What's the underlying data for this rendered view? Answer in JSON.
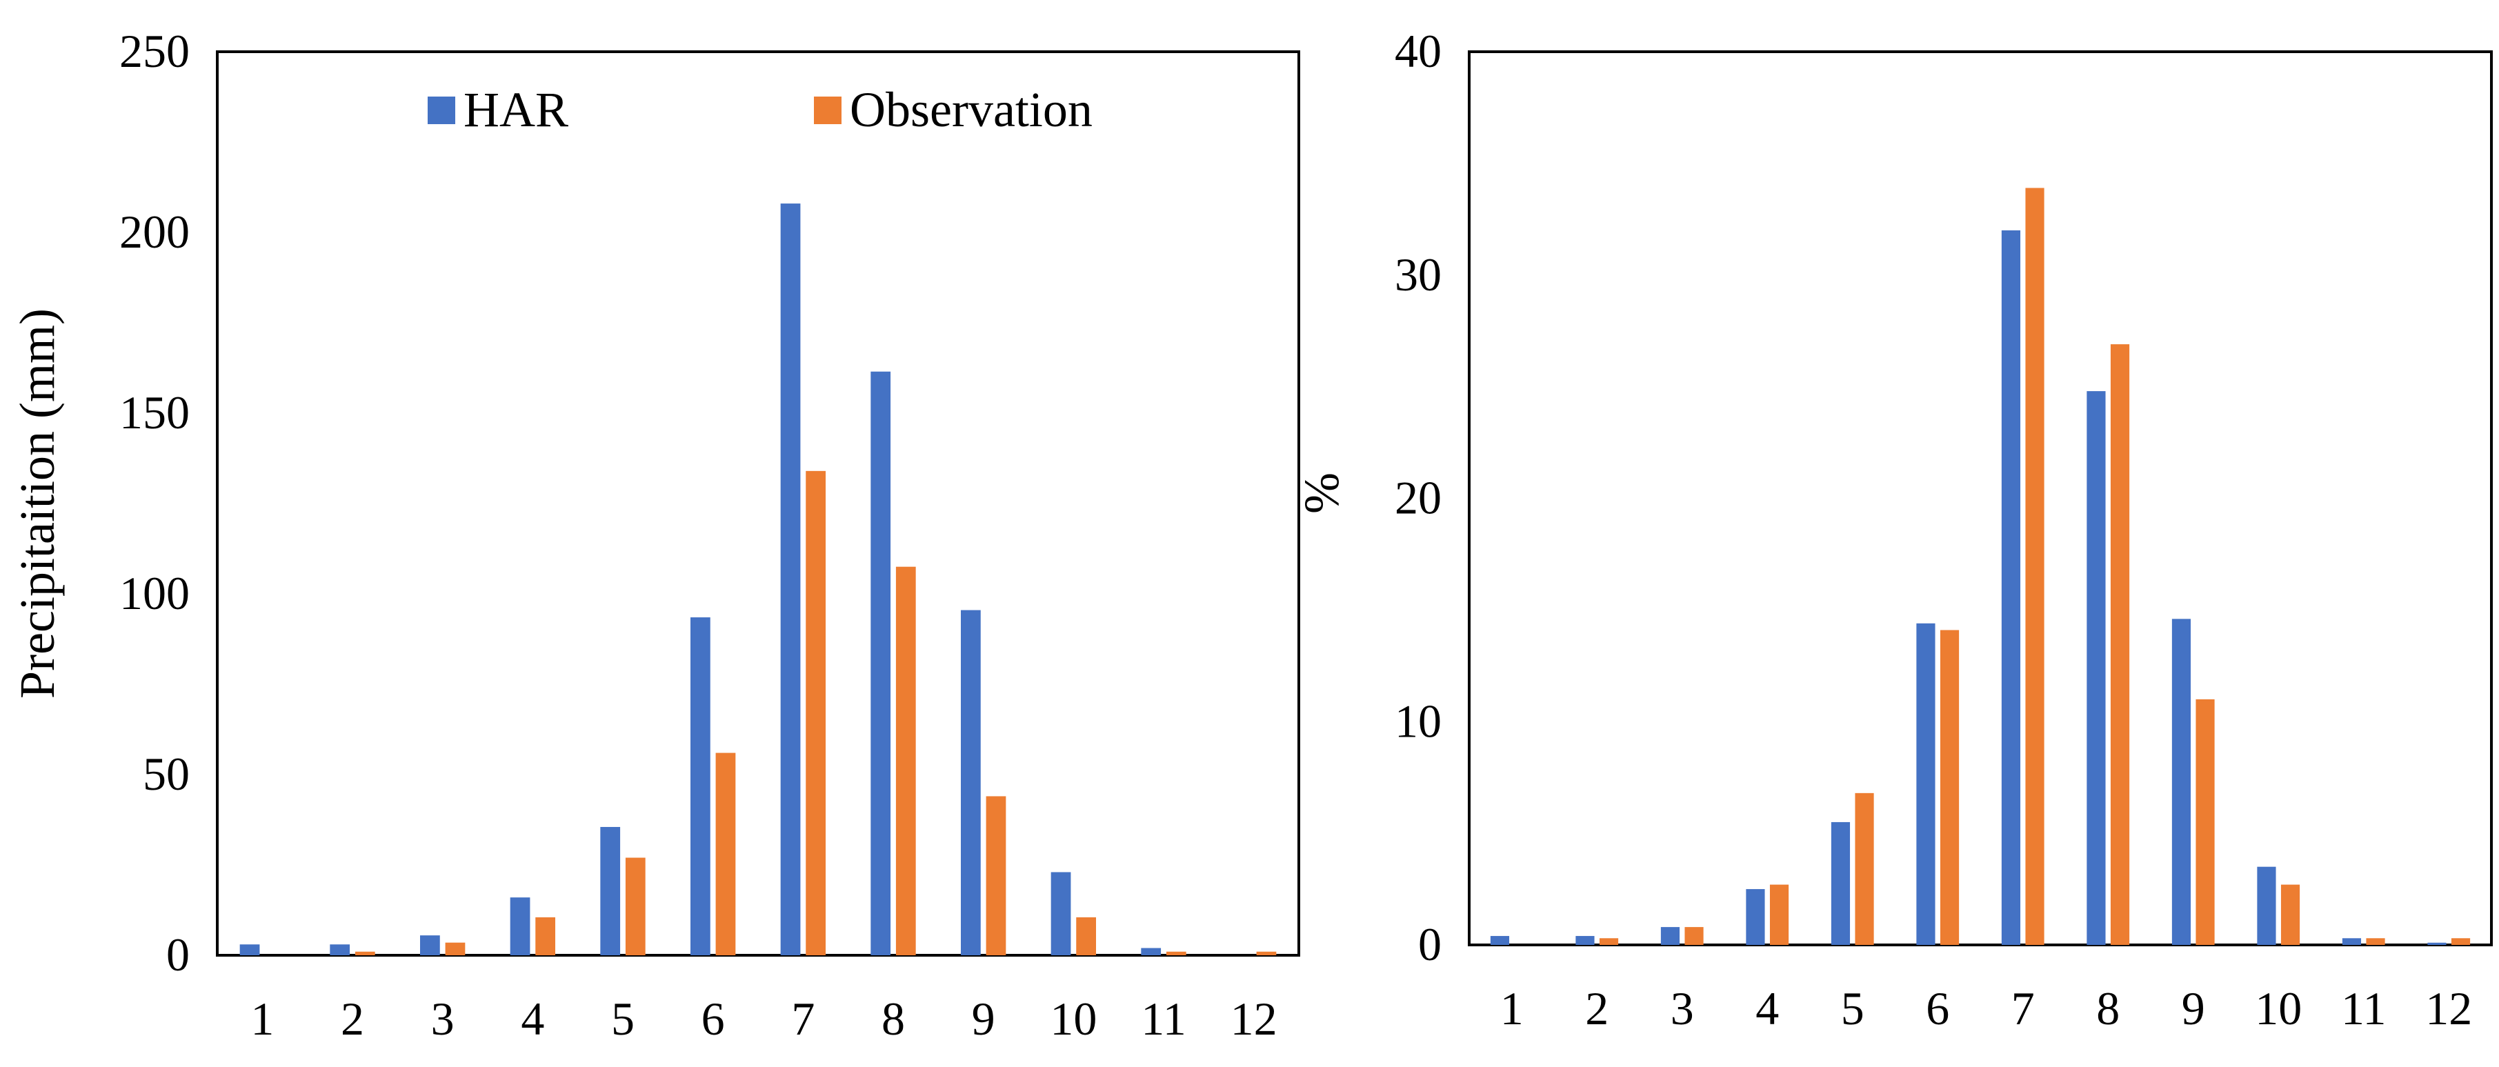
{
  "colors": {
    "har": "#4472C4",
    "observation": "#ED7D31",
    "axis": "#000000"
  },
  "chart_data": [
    {
      "type": "bar",
      "title": "",
      "xlabel": "",
      "ylabel": "Precipitaition (mm)",
      "ylim": [
        0,
        250
      ],
      "yticks": [
        "0",
        "50",
        "100",
        "150",
        "200",
        "250"
      ],
      "categories": [
        "1",
        "2",
        "3",
        "4",
        "5",
        "6",
        "7",
        "8",
        "9",
        "10",
        "11",
        "12"
      ],
      "legend": {
        "position": "top",
        "entries": [
          "HAR",
          "Observation"
        ]
      },
      "series": [
        {
          "name": "HAR",
          "values": [
            3,
            3,
            5.5,
            16,
            35.5,
            93.5,
            208,
            161.5,
            95.5,
            23,
            2,
            0
          ]
        },
        {
          "name": "Observation",
          "values": [
            0,
            1,
            3.5,
            10.5,
            27,
            56,
            134,
            107.5,
            44,
            10.5,
            1,
            1
          ]
        }
      ]
    },
    {
      "type": "bar",
      "title": "",
      "xlabel": "",
      "ylabel": "%",
      "ylim": [
        0,
        40
      ],
      "yticks": [
        "0",
        "10",
        "20",
        "30",
        "40"
      ],
      "categories": [
        "1",
        "2",
        "3",
        "4",
        "5",
        "6",
        "7",
        "8",
        "9",
        "10",
        "11",
        "12"
      ],
      "series": [
        {
          "name": "HAR",
          "values": [
            0.4,
            0.4,
            0.8,
            2.5,
            5.5,
            14.4,
            32,
            24.8,
            14.6,
            3.5,
            0.3,
            0.1
          ]
        },
        {
          "name": "Observation",
          "values": [
            0,
            0.3,
            0.8,
            2.7,
            6.8,
            14.1,
            33.9,
            26.9,
            11,
            2.7,
            0.3,
            0.3
          ]
        }
      ]
    }
  ]
}
